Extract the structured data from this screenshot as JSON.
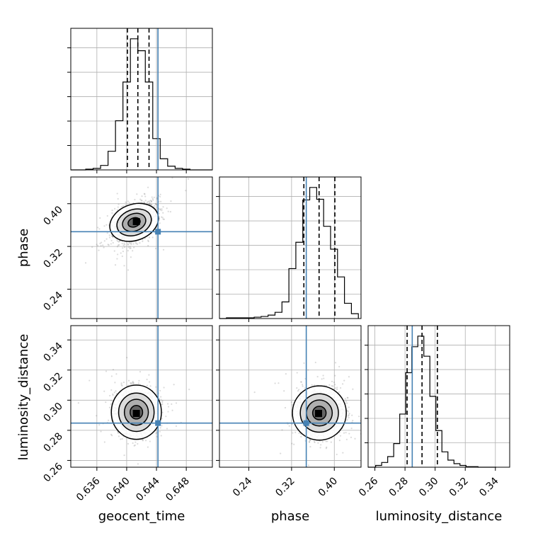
{
  "chart_data": {
    "type": "corner",
    "colors": {
      "truth": "#4682b4",
      "hist": "#000000",
      "grid": "#b0b0b0",
      "scatter": "#7f7f7f"
    },
    "parameters": [
      {
        "name": "geocent_time",
        "range": [
          0.6325,
          0.6515
        ],
        "ticks": [
          0.636,
          0.64,
          0.644,
          0.648
        ],
        "tick_labels": [
          "0.636",
          "0.640",
          "0.644",
          "0.648"
        ],
        "truth": 0.6442,
        "quantiles": [
          0.6401,
          0.6415,
          0.643
        ]
      },
      {
        "name": "phase",
        "range": [
          0.185,
          0.45
        ],
        "ticks": [
          0.24,
          0.32,
          0.4
        ],
        "tick_labels": [
          "0.24",
          "0.32",
          "0.40"
        ],
        "truth": 0.3475,
        "quantiles": [
          0.343,
          0.3715,
          0.401
        ]
      },
      {
        "name": "luminosity_distance",
        "range": [
          0.2555,
          0.3495
        ],
        "ticks": [
          0.26,
          0.28,
          0.3,
          0.32,
          0.34
        ],
        "tick_labels": [
          "0.26",
          "0.28",
          "0.30",
          "0.32",
          "0.34"
        ],
        "truth": 0.2848,
        "quantiles": [
          0.2814,
          0.2913,
          0.3015
        ]
      }
    ],
    "histograms": [
      {
        "param": "geocent_time",
        "bins": [
          0.6325,
          0.6335,
          0.6345,
          0.6355,
          0.6365,
          0.6375,
          0.6385,
          0.6395,
          0.6405,
          0.6415,
          0.6425,
          0.6435,
          0.6445,
          0.6455,
          0.6465,
          0.6475,
          0.6485,
          0.6495,
          0.6505,
          0.6515
        ],
        "counts": [
          0,
          0,
          1,
          2,
          6,
          25,
          66,
          118,
          176,
          160,
          118,
          42,
          15,
          5,
          2,
          1,
          0,
          0,
          0
        ]
      },
      {
        "param": "phase",
        "bins": [
          0.185,
          0.198,
          0.211,
          0.224,
          0.237,
          0.25,
          0.263,
          0.276,
          0.289,
          0.302,
          0.315,
          0.328,
          0.341,
          0.354,
          0.367,
          0.38,
          0.393,
          0.406,
          0.419,
          0.432,
          0.445
        ],
        "counts": [
          0,
          1,
          1,
          1,
          1,
          2,
          3,
          5,
          9,
          24,
          72,
          110,
          171,
          189,
          172,
          133,
          100,
          60,
          22,
          7
        ]
      },
      {
        "param": "luminosity_distance",
        "bins": [
          0.2555,
          0.2605,
          0.2645,
          0.2685,
          0.2725,
          0.2765,
          0.2805,
          0.2845,
          0.2885,
          0.2925,
          0.2965,
          0.3005,
          0.3045,
          0.3085,
          0.3125,
          0.3165,
          0.3205,
          0.3245,
          0.3285,
          0.3325,
          0.3365,
          0.3405
        ],
        "counts": [
          0,
          3,
          8,
          18,
          40,
          90,
          160,
          204,
          222,
          188,
          120,
          62,
          26,
          12,
          6,
          3,
          1,
          1,
          0,
          0,
          0
        ]
      }
    ],
    "scatter": {
      "geocent_time_phase": {
        "x_center": 0.641,
        "y_center": 0.365,
        "x_sd": 0.0014,
        "y_sd": 0.018,
        "rho": 0.45,
        "n": 1500,
        "peak": [
          0.6413,
          0.3665
        ]
      },
      "geocent_time_luminosity_distance": {
        "x_center": 0.6413,
        "y_center": 0.292,
        "x_sd": 0.0014,
        "y_sd": 0.0075,
        "rho": 0.0,
        "n": 1500,
        "peak": [
          0.6413,
          0.2912
        ]
      },
      "phase_luminosity_distance": {
        "x_center": 0.372,
        "y_center": 0.2915,
        "x_sd": 0.021,
        "y_sd": 0.0075,
        "rho": 0.0,
        "n": 1500,
        "peak": [
          0.3705,
          0.2912
        ]
      }
    }
  }
}
